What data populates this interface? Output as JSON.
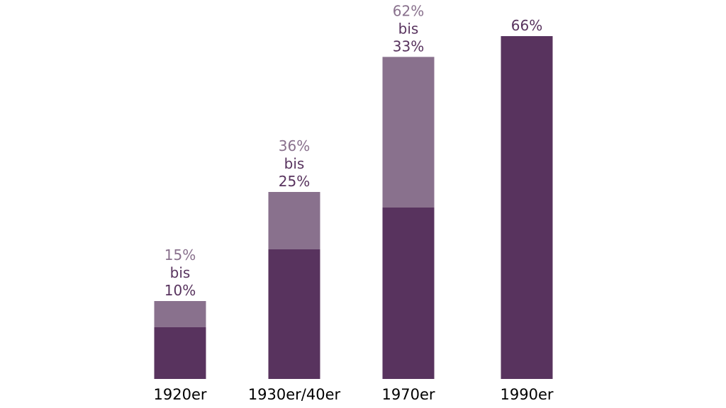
{
  "chart_data": {
    "type": "bar",
    "stacked": true,
    "categories": [
      "1920er",
      "1930er/40er",
      "1970er",
      "1990er"
    ],
    "series": [
      {
        "values": [
          10,
          25,
          33,
          66
        ]
      },
      {
        "values": [
          5,
          11,
          29,
          0
        ]
      }
    ],
    "totals": [
      15,
      36,
      62,
      66
    ],
    "data_labels": [
      {
        "upper": "15%",
        "connector": "bis",
        "lower": "10%"
      },
      {
        "upper": "36%",
        "connector": "bis",
        "lower": "25%"
      },
      {
        "upper": "62%",
        "connector": "bis",
        "lower": "33%"
      },
      {
        "upper": "",
        "connector": "",
        "lower": "66%"
      }
    ],
    "ylim": [
      0,
      66
    ],
    "grid": false,
    "title": "",
    "xlabel": "",
    "ylabel": "",
    "colors": {
      "base": "#58335E",
      "range": "#89718D",
      "upper_text": "#89718D",
      "lower_text": "#58335E",
      "axis_text": "#000000"
    }
  }
}
